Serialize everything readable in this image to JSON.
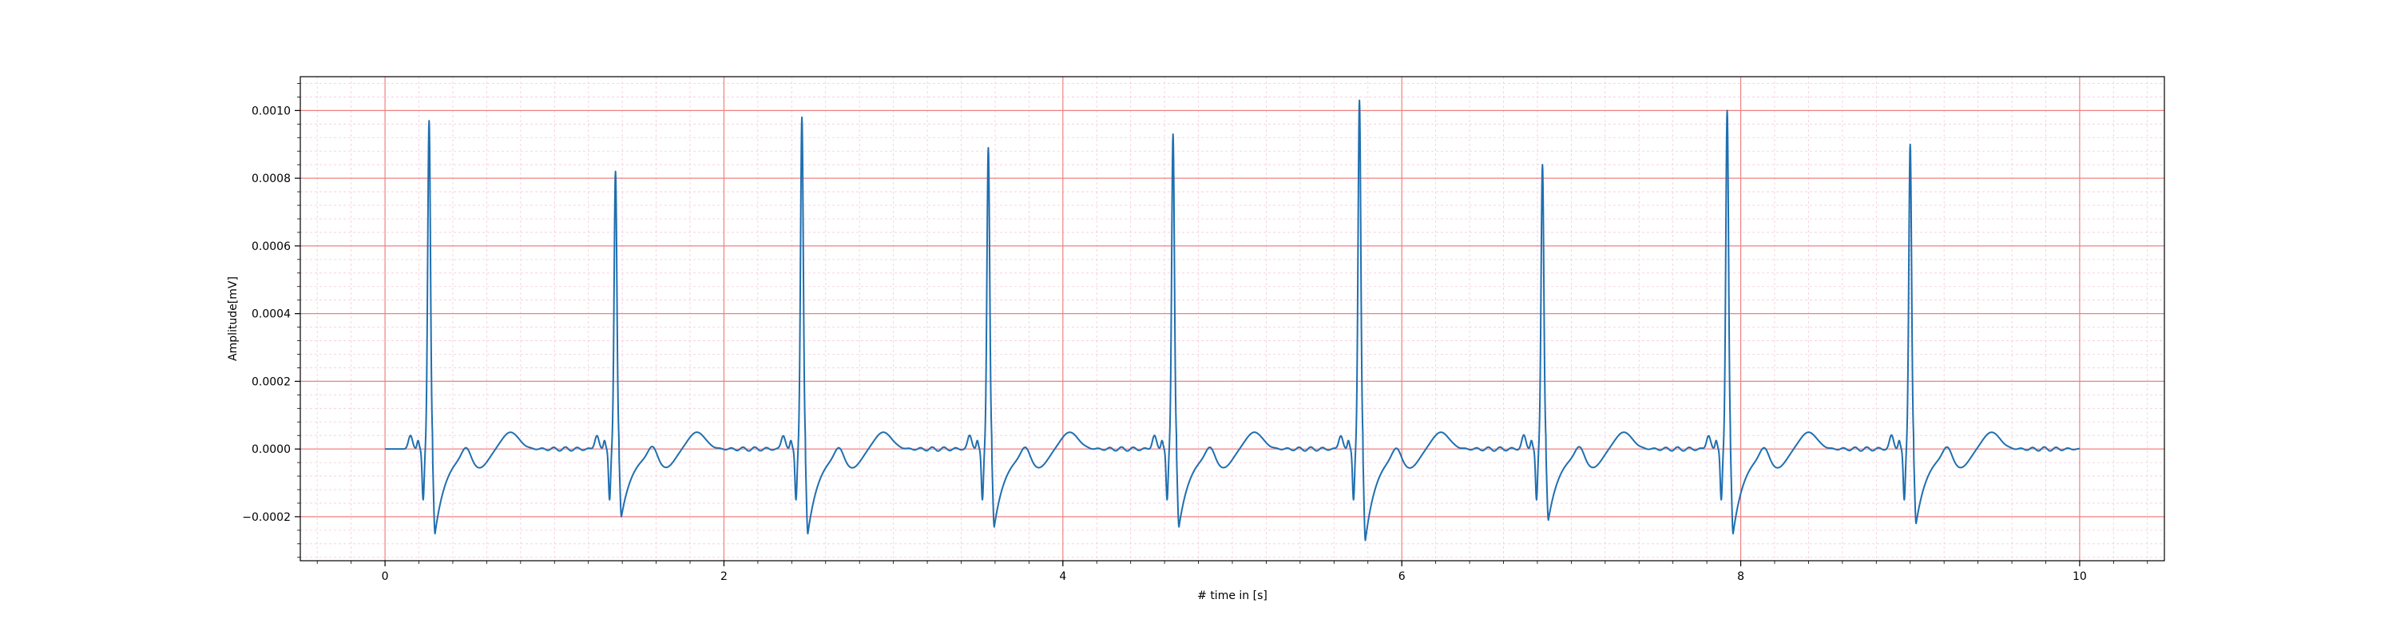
{
  "chart_data": {
    "type": "line",
    "xlabel": "# time in [s]",
    "ylabel": "Amplitude[mV]",
    "xlim": [
      -0.5,
      10.5
    ],
    "ylim": [
      -0.00033,
      0.0011
    ],
    "x_ticks": [
      0,
      2,
      4,
      6,
      8,
      10
    ],
    "x_tick_labels": [
      "0",
      "2",
      "4",
      "6",
      "8",
      "10"
    ],
    "y_ticks": [
      -0.0002,
      0.0,
      0.0002,
      0.0004,
      0.0006,
      0.0008,
      0.001
    ],
    "y_tick_labels": [
      "−0.0002",
      "0.0000",
      "0.0002",
      "0.0004",
      "0.0006",
      "0.0008",
      "0.0010"
    ],
    "grid": {
      "major": true,
      "minor": true,
      "major_color": "#f08080",
      "minor_color": "#f6c9dd"
    },
    "line_color": "#1f6fb0",
    "series": [
      {
        "r_peak_times": [
          0.26,
          1.36,
          2.46,
          3.56,
          4.65,
          5.75,
          6.83,
          7.92,
          9.0
        ],
        "r_peak_amplitudes": [
          0.00097,
          0.00082,
          0.00098,
          0.00089,
          0.00093,
          0.00103,
          0.00084,
          0.001,
          0.0009
        ],
        "s_wave_min": [
          -0.00025,
          -0.0002,
          -0.00025,
          -0.00023,
          -0.00023,
          -0.00027,
          -0.00021,
          -0.00025,
          -0.00022
        ],
        "t_wave_amplitude": 5e-05,
        "duration": [
          0,
          10
        ]
      }
    ]
  }
}
